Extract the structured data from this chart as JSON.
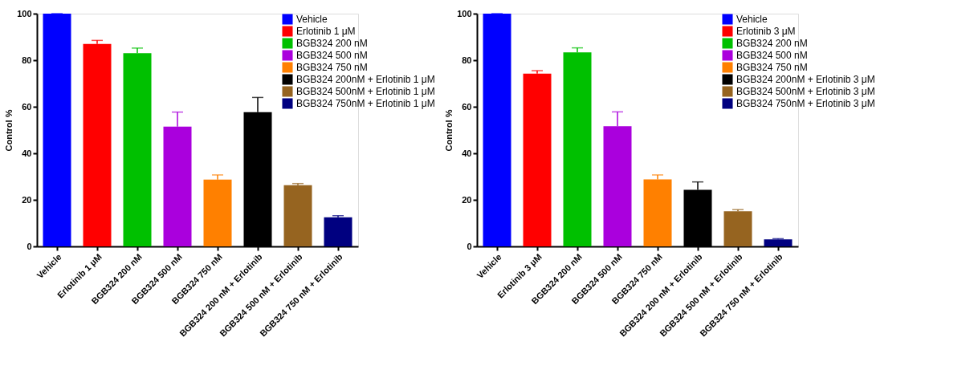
{
  "chart_data": [
    {
      "type": "bar",
      "ylabel": "Control %",
      "categories": [
        "Vehicle",
        "Erlotinib 1 μM",
        "BGB324 200 nM",
        "BGB324 500 nM",
        "BGB324 750 nM",
        "BGB324 200 nM + Erlotinib",
        "BGB324 500 nM + Erlotinib",
        "BGB324 750 nM + Erlotinib"
      ],
      "ylim": [
        0,
        100
      ],
      "yticks": [
        0,
        20,
        40,
        60,
        80,
        100
      ],
      "grid": false,
      "legend": "right",
      "series": [
        {
          "name": "Vehicle",
          "color": "#0000ff",
          "values": [
            100,
            null,
            null,
            null,
            null,
            null,
            null,
            null
          ],
          "errors": [
            [
              100,
              100
            ],
            null,
            null,
            null,
            null,
            null,
            null,
            null
          ]
        },
        {
          "name": "Erlotinib 1 μM",
          "color": "#ff0000",
          "values": [
            null,
            87,
            null,
            null,
            null,
            null,
            null,
            null
          ],
          "errors": [
            null,
            [
              87,
              88.5
            ],
            null,
            null,
            null,
            null,
            null,
            null
          ]
        },
        {
          "name": "BGB324 200 nM",
          "color": "#00c000",
          "values": [
            null,
            null,
            83,
            null,
            null,
            null,
            null,
            null
          ],
          "errors": [
            null,
            null,
            [
              83,
              85.2
            ],
            null,
            null,
            null,
            null,
            null
          ]
        },
        {
          "name": "BGB324 500 nM",
          "color": "#aa00dd",
          "values": [
            null,
            null,
            null,
            51.5,
            null,
            null,
            null,
            null
          ],
          "errors": [
            null,
            null,
            null,
            [
              51.5,
              57.7
            ],
            null,
            null,
            null,
            null
          ]
        },
        {
          "name": "BGB324 750 nM",
          "color": "#ff8000",
          "values": [
            null,
            null,
            null,
            null,
            28.7,
            null,
            null,
            null
          ],
          "errors": [
            null,
            null,
            null,
            null,
            [
              28.7,
              30.7
            ],
            null,
            null,
            null
          ]
        },
        {
          "name": "BGB324 200nM + Erlotinib 1 μM",
          "color": "#000000",
          "values": [
            null,
            null,
            null,
            null,
            null,
            57.7,
            null,
            null
          ],
          "errors": [
            null,
            null,
            null,
            null,
            null,
            [
              57.7,
              64
            ],
            null,
            null
          ]
        },
        {
          "name": "BGB324 500nM + Erlotinib 1 μM",
          "color": "#966420",
          "values": [
            null,
            null,
            null,
            null,
            null,
            null,
            26.3,
            null
          ],
          "errors": [
            null,
            null,
            null,
            null,
            null,
            null,
            [
              26.3,
              27
            ],
            null
          ]
        },
        {
          "name": "BGB324 750nM + Erlotinib 1 μM",
          "color": "#000080",
          "values": [
            null,
            null,
            null,
            null,
            null,
            null,
            null,
            12.5
          ],
          "errors": [
            null,
            null,
            null,
            null,
            null,
            null,
            null,
            [
              12.5,
              13.2
            ]
          ]
        }
      ]
    },
    {
      "type": "bar",
      "ylabel": "Control %",
      "categories": [
        "Vehicle",
        "Erlotinib 3 μM",
        "BGB324 200 nM",
        "BGB324 500 nM",
        "BGB324 750 nM",
        "BGB324 200 nM + Erlotinib",
        "BGB324 500 nM + Erlotinib",
        "BGB324 750 nM + Erlotinib"
      ],
      "ylim": [
        0,
        100
      ],
      "yticks": [
        0,
        20,
        40,
        60,
        80,
        100
      ],
      "grid": false,
      "legend": "right",
      "series": [
        {
          "name": "Vehicle",
          "color": "#0000ff",
          "values": [
            100,
            null,
            null,
            null,
            null,
            null,
            null,
            null
          ],
          "errors": [
            [
              100,
              100
            ],
            null,
            null,
            null,
            null,
            null,
            null,
            null
          ]
        },
        {
          "name": "Erlotinib 3 μM",
          "color": "#ff0000",
          "values": [
            null,
            74.2,
            null,
            null,
            null,
            null,
            null,
            null
          ],
          "errors": [
            null,
            [
              74.2,
              75.5
            ],
            null,
            null,
            null,
            null,
            null,
            null
          ]
        },
        {
          "name": "BGB324 200 nM",
          "color": "#00c000",
          "values": [
            null,
            null,
            83.4,
            null,
            null,
            null,
            null,
            null
          ],
          "errors": [
            null,
            null,
            [
              83.4,
              85.3
            ],
            null,
            null,
            null,
            null,
            null
          ]
        },
        {
          "name": "BGB324 500 nM",
          "color": "#aa00dd",
          "values": [
            null,
            null,
            null,
            51.6,
            null,
            null,
            null,
            null
          ],
          "errors": [
            null,
            null,
            null,
            [
              51.6,
              57.8
            ],
            null,
            null,
            null,
            null
          ]
        },
        {
          "name": "BGB324 750 nM",
          "color": "#ff8000",
          "values": [
            null,
            null,
            null,
            null,
            28.8,
            null,
            null,
            null
          ],
          "errors": [
            null,
            null,
            null,
            null,
            [
              28.8,
              30.7
            ],
            null,
            null,
            null
          ]
        },
        {
          "name": "BGB324 200nM + Erlotinib 3 μM",
          "color": "#000000",
          "values": [
            null,
            null,
            null,
            null,
            null,
            24.3,
            null,
            null
          ],
          "errors": [
            null,
            null,
            null,
            null,
            null,
            [
              24.3,
              27.7
            ],
            null,
            null
          ]
        },
        {
          "name": "BGB324 500nM + Erlotinib 3 μM",
          "color": "#966420",
          "values": [
            null,
            null,
            null,
            null,
            null,
            null,
            15.1,
            null
          ],
          "errors": [
            null,
            null,
            null,
            null,
            null,
            null,
            [
              15.1,
              15.8
            ],
            null
          ]
        },
        {
          "name": "BGB324 750nM + Erlotinib 3 μM",
          "color": "#000080",
          "values": [
            null,
            null,
            null,
            null,
            null,
            null,
            null,
            3
          ],
          "errors": [
            null,
            null,
            null,
            null,
            null,
            null,
            null,
            [
              3,
              3.3
            ]
          ]
        }
      ]
    }
  ]
}
